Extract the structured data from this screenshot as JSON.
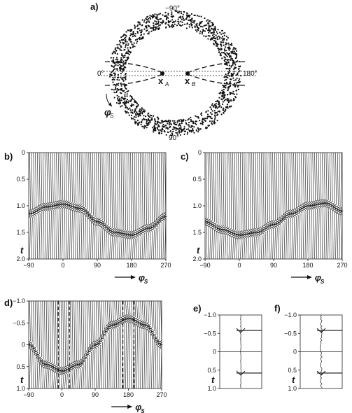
{
  "panels": {
    "a": {
      "label": "a)",
      "angle_top": "−90°",
      "angle_left": "0°",
      "angle_right": "180°",
      "angle_bottom": "90°",
      "point_a": "x",
      "point_a_sub": "A",
      "point_b": "x",
      "point_b_sub": "B",
      "phi_label": "φ",
      "phi_sub": "S"
    },
    "b": {
      "label": "b)"
    },
    "c": {
      "label": "c)"
    },
    "d": {
      "label": "d)"
    },
    "e": {
      "label": "e)"
    },
    "f": {
      "label": "f)"
    }
  },
  "axes": {
    "t_label": "t",
    "phi_label": "φ",
    "phi_sub": "S",
    "x_ticks": [
      "−90",
      "0",
      "90",
      "180",
      "270"
    ],
    "bc_y_ticks": [
      "0",
      "0.5",
      "1.0",
      "1.5",
      "2.0"
    ],
    "d_y_ticks": [
      "−1.0",
      "−0.5",
      "0",
      "0.5",
      "1.0"
    ],
    "ef_y_ticks": [
      "−1.0",
      "−0.5",
      "0",
      "0.5",
      "1.0"
    ]
  },
  "chart_data": [
    {
      "panel": "b",
      "type": "line",
      "xlabel": "φS",
      "ylabel": "t",
      "xlim": [
        -90,
        270
      ],
      "ylim": [
        2.0,
        0
      ],
      "x_ticks": [
        -90,
        0,
        90,
        180,
        270
      ],
      "y_ticks": [
        0,
        0.5,
        1.0,
        1.5,
        2.0
      ],
      "trace_count": 72,
      "arrival_curve": {
        "x": [
          -90,
          -45,
          0,
          45,
          90,
          135,
          180,
          225,
          270
        ],
        "y": [
          1.15,
          1.02,
          0.97,
          1.05,
          1.3,
          1.5,
          1.55,
          1.42,
          1.2
        ]
      }
    },
    {
      "panel": "c",
      "type": "line",
      "xlabel": "φS",
      "ylabel": "t",
      "xlim": [
        -90,
        270
      ],
      "ylim": [
        2.0,
        0
      ],
      "x_ticks": [
        -90,
        0,
        90,
        180,
        270
      ],
      "y_ticks": [
        0,
        0.5,
        1.0,
        1.5,
        2.0
      ],
      "trace_count": 72,
      "arrival_curve": {
        "x": [
          -90,
          -45,
          0,
          45,
          90,
          135,
          180,
          225,
          270
        ],
        "y": [
          1.3,
          1.45,
          1.55,
          1.5,
          1.35,
          1.15,
          1.0,
          0.95,
          1.1
        ]
      }
    },
    {
      "panel": "d",
      "type": "line",
      "xlabel": "φS",
      "ylabel": "t",
      "xlim": [
        -90,
        270
      ],
      "ylim": [
        1.0,
        -1.0
      ],
      "x_ticks": [
        -90,
        0,
        90,
        180,
        270
      ],
      "y_ticks": [
        -1.0,
        -0.5,
        0,
        0.5,
        1.0
      ],
      "trace_count": 72,
      "dashed_x": [
        -10,
        20,
        165,
        195
      ],
      "arrival_curve": {
        "x": [
          -90,
          -45,
          0,
          45,
          90,
          135,
          180,
          225,
          270
        ],
        "y": [
          0.0,
          0.45,
          0.6,
          0.45,
          0.0,
          -0.45,
          -0.6,
          -0.45,
          0.0
        ]
      }
    },
    {
      "panel": "e",
      "type": "line",
      "ylabel": "t",
      "ylim": [
        1.0,
        -1.0
      ],
      "y_ticks": [
        -1.0,
        -0.5,
        0,
        0.5,
        1.0
      ],
      "pulses_t": [
        -0.58,
        0.58
      ]
    },
    {
      "panel": "f",
      "type": "line",
      "ylabel": "t",
      "ylim": [
        1.0,
        -1.0
      ],
      "y_ticks": [
        -1.0,
        -0.5,
        0,
        0.5,
        1.0
      ],
      "pulses_t": [
        -0.58,
        0.58
      ]
    }
  ]
}
